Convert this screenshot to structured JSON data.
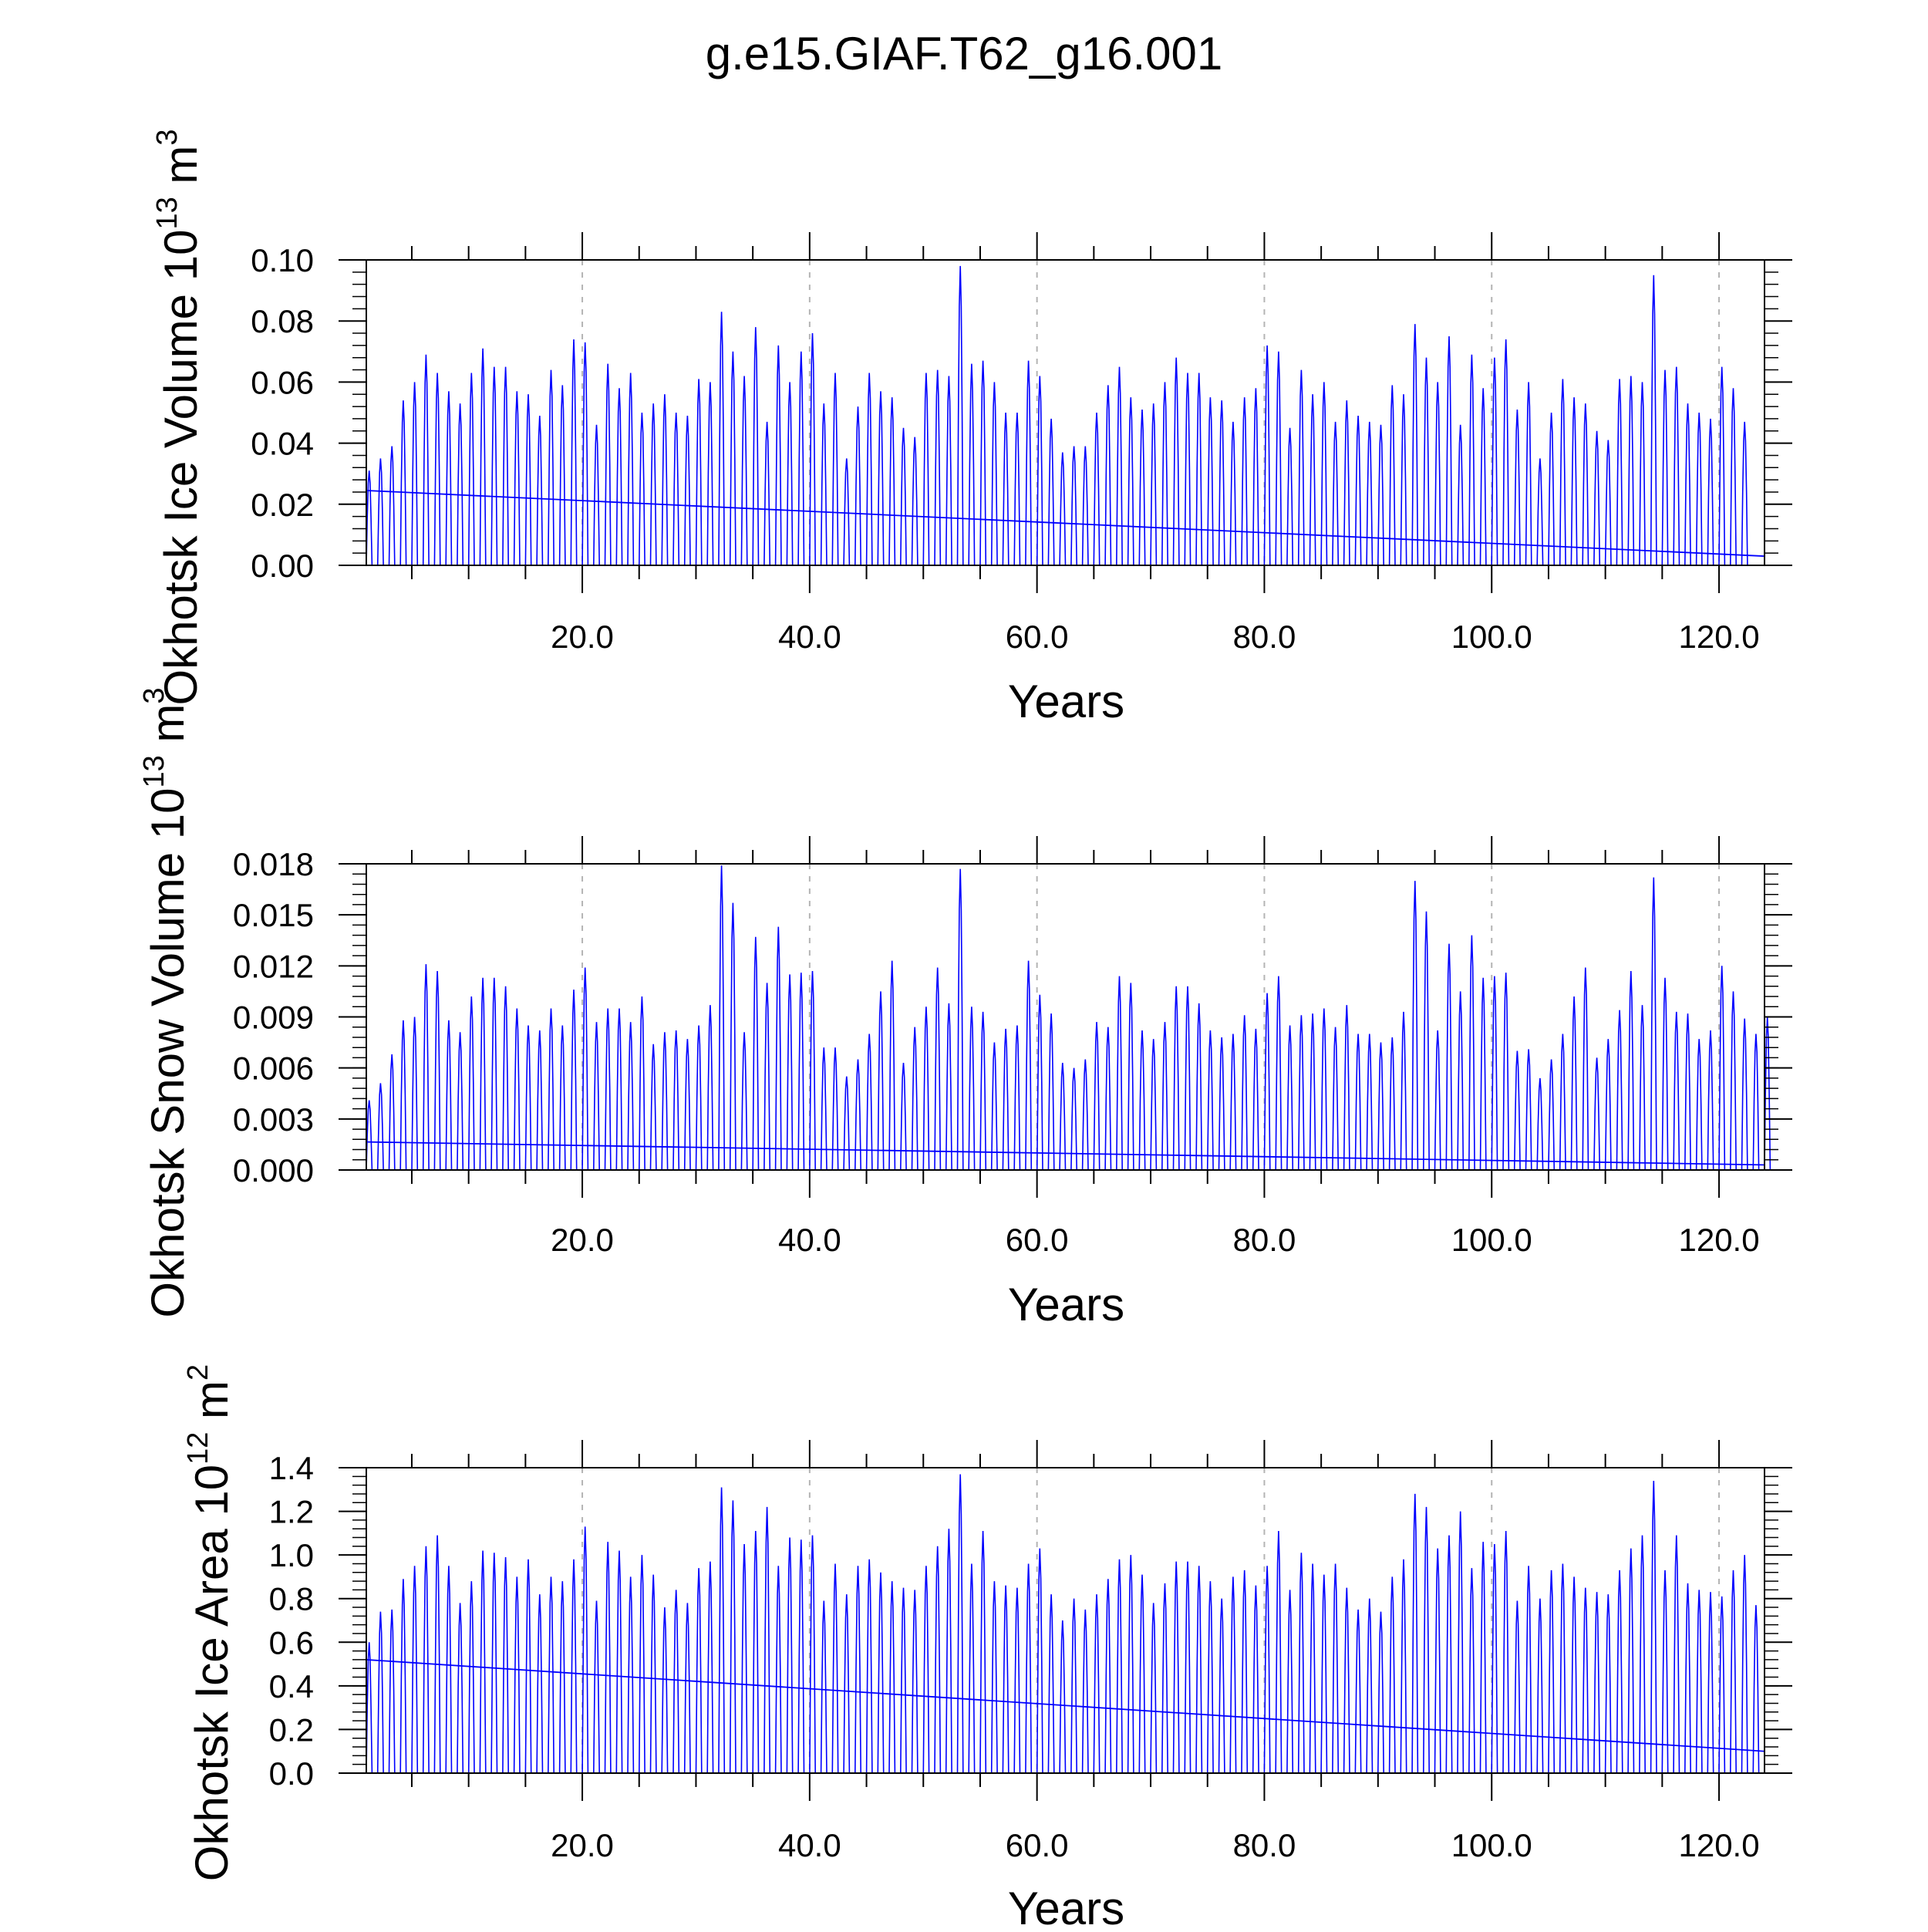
{
  "figure_title": "g.e15.GIAF.T62_g16.001",
  "colors": {
    "series": "#0000ff",
    "axis": "#000000",
    "grid": "#b4b4b4"
  },
  "chart_data": [
    {
      "type": "line",
      "ylabel": "Okhotsk Ice Volume 10",
      "ylabel_sup": "13",
      "ylabel_unit": " m",
      "ylabel_unit_sup": "3",
      "xlabel": "Years",
      "xlim": [
        1,
        124
      ],
      "ylim": [
        0,
        0.1
      ],
      "yticks": [
        0.0,
        0.02,
        0.04,
        0.06,
        0.08,
        0.1
      ],
      "ytick_labels": [
        "0.00",
        "0.02",
        "0.04",
        "0.06",
        "0.08",
        "0.10"
      ],
      "y_minor_step": 0.004,
      "xticks": [
        20,
        40,
        60,
        80,
        100,
        120
      ],
      "xtick_labels": [
        "20.0",
        "40.0",
        "60.0",
        "80.0",
        "100.0",
        "120.0"
      ],
      "x_minor_step": 5,
      "annual_max": [
        0.031,
        0.035,
        0.039,
        0.054,
        0.06,
        0.069,
        0.063,
        0.057,
        0.053,
        0.063,
        0.071,
        0.065,
        0.065,
        0.057,
        0.056,
        0.049,
        0.064,
        0.059,
        0.074,
        0.073,
        0.046,
        0.066,
        0.058,
        0.063,
        0.05,
        0.053,
        0.056,
        0.05,
        0.049,
        0.061,
        0.06,
        0.083,
        0.07,
        0.062,
        0.078,
        0.047,
        0.072,
        0.06,
        0.07,
        0.076,
        0.053,
        0.063,
        0.035,
        0.052,
        0.063,
        0.057,
        0.055,
        0.045,
        0.042,
        0.063,
        0.064,
        0.062,
        0.098,
        0.066,
        0.067,
        0.06,
        0.05,
        0.05,
        0.067,
        0.062,
        0.048,
        0.037,
        0.039,
        0.039,
        0.05,
        0.059,
        0.065,
        0.055,
        0.051,
        0.053,
        0.06,
        0.068,
        0.063,
        0.063,
        0.055,
        0.054,
        0.047,
        0.055,
        0.058,
        0.072,
        0.07,
        0.045,
        0.064,
        0.056,
        0.06,
        0.047,
        0.054,
        0.049,
        0.047,
        0.046,
        0.059,
        0.056,
        0.079,
        0.068,
        0.06,
        0.075,
        0.046,
        0.069,
        0.058,
        0.068,
        0.074,
        0.051,
        0.06,
        0.035,
        0.05,
        0.061,
        0.055,
        0.053,
        0.044,
        0.041,
        0.061,
        0.062,
        0.06,
        0.095,
        0.064,
        0.065,
        0.053,
        0.05,
        0.048,
        0.065,
        0.058,
        0.047
      ],
      "trend": [
        0.0245,
        0.003
      ]
    },
    {
      "type": "line",
      "ylabel": "Okhotsk Snow Volume 10",
      "ylabel_sup": "13",
      "ylabel_unit": " m",
      "ylabel_unit_sup": "3",
      "xlabel": "Years",
      "xlim": [
        1,
        124
      ],
      "ylim": [
        0,
        0.018
      ],
      "yticks": [
        0.0,
        0.003,
        0.006,
        0.009,
        0.012,
        0.015,
        0.018
      ],
      "ytick_labels": [
        "0.000",
        "0.003",
        "0.006",
        "0.009",
        "0.012",
        "0.015",
        "0.018"
      ],
      "y_minor_step": 0.0006,
      "xticks": [
        20,
        40,
        60,
        80,
        100,
        120
      ],
      "xtick_labels": [
        "20.0",
        "40.0",
        "60.0",
        "80.0",
        "100.0",
        "120.0"
      ],
      "x_minor_step": 5,
      "annual_max": [
        0.0041,
        0.0051,
        0.0068,
        0.0088,
        0.009,
        0.0121,
        0.0117,
        0.0088,
        0.0081,
        0.0102,
        0.0113,
        0.0113,
        0.0108,
        0.0095,
        0.0085,
        0.0082,
        0.0095,
        0.0085,
        0.0106,
        0.0119,
        0.0087,
        0.0095,
        0.0095,
        0.0087,
        0.0102,
        0.0074,
        0.0081,
        0.0082,
        0.0077,
        0.0085,
        0.0097,
        0.0179,
        0.0157,
        0.0081,
        0.0137,
        0.011,
        0.0143,
        0.0115,
        0.0116,
        0.0117,
        0.0072,
        0.0072,
        0.0055,
        0.0065,
        0.008,
        0.0105,
        0.0123,
        0.0063,
        0.0084,
        0.0096,
        0.0119,
        0.0098,
        0.0177,
        0.0096,
        0.0093,
        0.0075,
        0.0083,
        0.0085,
        0.0123,
        0.0103,
        0.0092,
        0.0063,
        0.006,
        0.0065,
        0.0087,
        0.0084,
        0.0114,
        0.011,
        0.0082,
        0.0077,
        0.0087,
        0.0108,
        0.0108,
        0.0098,
        0.0082,
        0.0078,
        0.008,
        0.0091,
        0.0083,
        0.0104,
        0.0114,
        0.0085,
        0.0091,
        0.0092,
        0.0095,
        0.0084,
        0.0097,
        0.008,
        0.008,
        0.0075,
        0.0078,
        0.0093,
        0.017,
        0.0152,
        0.0082,
        0.0133,
        0.0105,
        0.0138,
        0.0113,
        0.0114,
        0.0116,
        0.007,
        0.0071,
        0.0054,
        0.0065,
        0.008,
        0.0102,
        0.0119,
        0.0066,
        0.0077,
        0.0094,
        0.0117,
        0.0097,
        0.0172,
        0.0113,
        0.0093,
        0.0092,
        0.0077,
        0.0082,
        0.012,
        0.0105,
        0.0089,
        0.008,
        0.009
      ],
      "trend": [
        0.00165,
        0.0003
      ]
    },
    {
      "type": "line",
      "ylabel": "Okhotsk Ice Area 10",
      "ylabel_sup": "12",
      "ylabel_unit": " m",
      "ylabel_unit_sup": "2",
      "xlabel": "Years",
      "xlim": [
        1,
        124
      ],
      "ylim": [
        0,
        1.4
      ],
      "yticks": [
        0.0,
        0.2,
        0.4,
        0.6,
        0.8,
        1.0,
        1.2,
        1.4
      ],
      "ytick_labels": [
        "0.0",
        "0.2",
        "0.4",
        "0.6",
        "0.8",
        "1.0",
        "1.2",
        "1.4"
      ],
      "y_minor_step": 0.04,
      "xticks": [
        20,
        40,
        60,
        80,
        100,
        120
      ],
      "xtick_labels": [
        "20.0",
        "40.0",
        "60.0",
        "80.0",
        "100.0",
        "120.0"
      ],
      "x_minor_step": 5,
      "annual_max": [
        0.6,
        0.74,
        0.75,
        0.89,
        0.95,
        1.04,
        1.09,
        0.95,
        0.78,
        0.88,
        1.02,
        1.01,
        0.99,
        0.9,
        0.98,
        0.82,
        0.9,
        0.88,
        0.98,
        1.13,
        0.79,
        1.06,
        1.02,
        0.9,
        1.0,
        0.91,
        0.76,
        0.84,
        0.78,
        0.94,
        0.97,
        1.31,
        1.25,
        1.05,
        1.11,
        1.22,
        0.95,
        1.08,
        1.07,
        1.09,
        0.79,
        0.96,
        0.82,
        0.95,
        0.98,
        0.92,
        0.88,
        0.85,
        0.84,
        0.95,
        1.04,
        1.12,
        1.37,
        0.96,
        1.11,
        0.88,
        0.86,
        0.85,
        0.96,
        1.03,
        0.82,
        0.7,
        0.8,
        0.75,
        0.82,
        0.89,
        0.98,
        1.0,
        0.91,
        0.78,
        0.87,
        0.97,
        0.97,
        0.95,
        0.88,
        0.8,
        0.9,
        0.93,
        0.86,
        0.95,
        1.11,
        0.84,
        1.01,
        0.96,
        0.91,
        0.96,
        0.85,
        0.75,
        0.8,
        0.74,
        0.9,
        0.98,
        1.28,
        1.22,
        1.03,
        1.09,
        1.2,
        0.94,
        1.06,
        1.05,
        1.11,
        0.79,
        0.95,
        0.8,
        0.93,
        0.96,
        0.9,
        0.85,
        0.83,
        0.82,
        0.93,
        1.03,
        1.09,
        1.34,
        0.93,
        1.09,
        0.87,
        0.84,
        0.83,
        0.81,
        0.93,
        1.0,
        0.77
      ],
      "trend": [
        0.52,
        0.1
      ]
    }
  ]
}
